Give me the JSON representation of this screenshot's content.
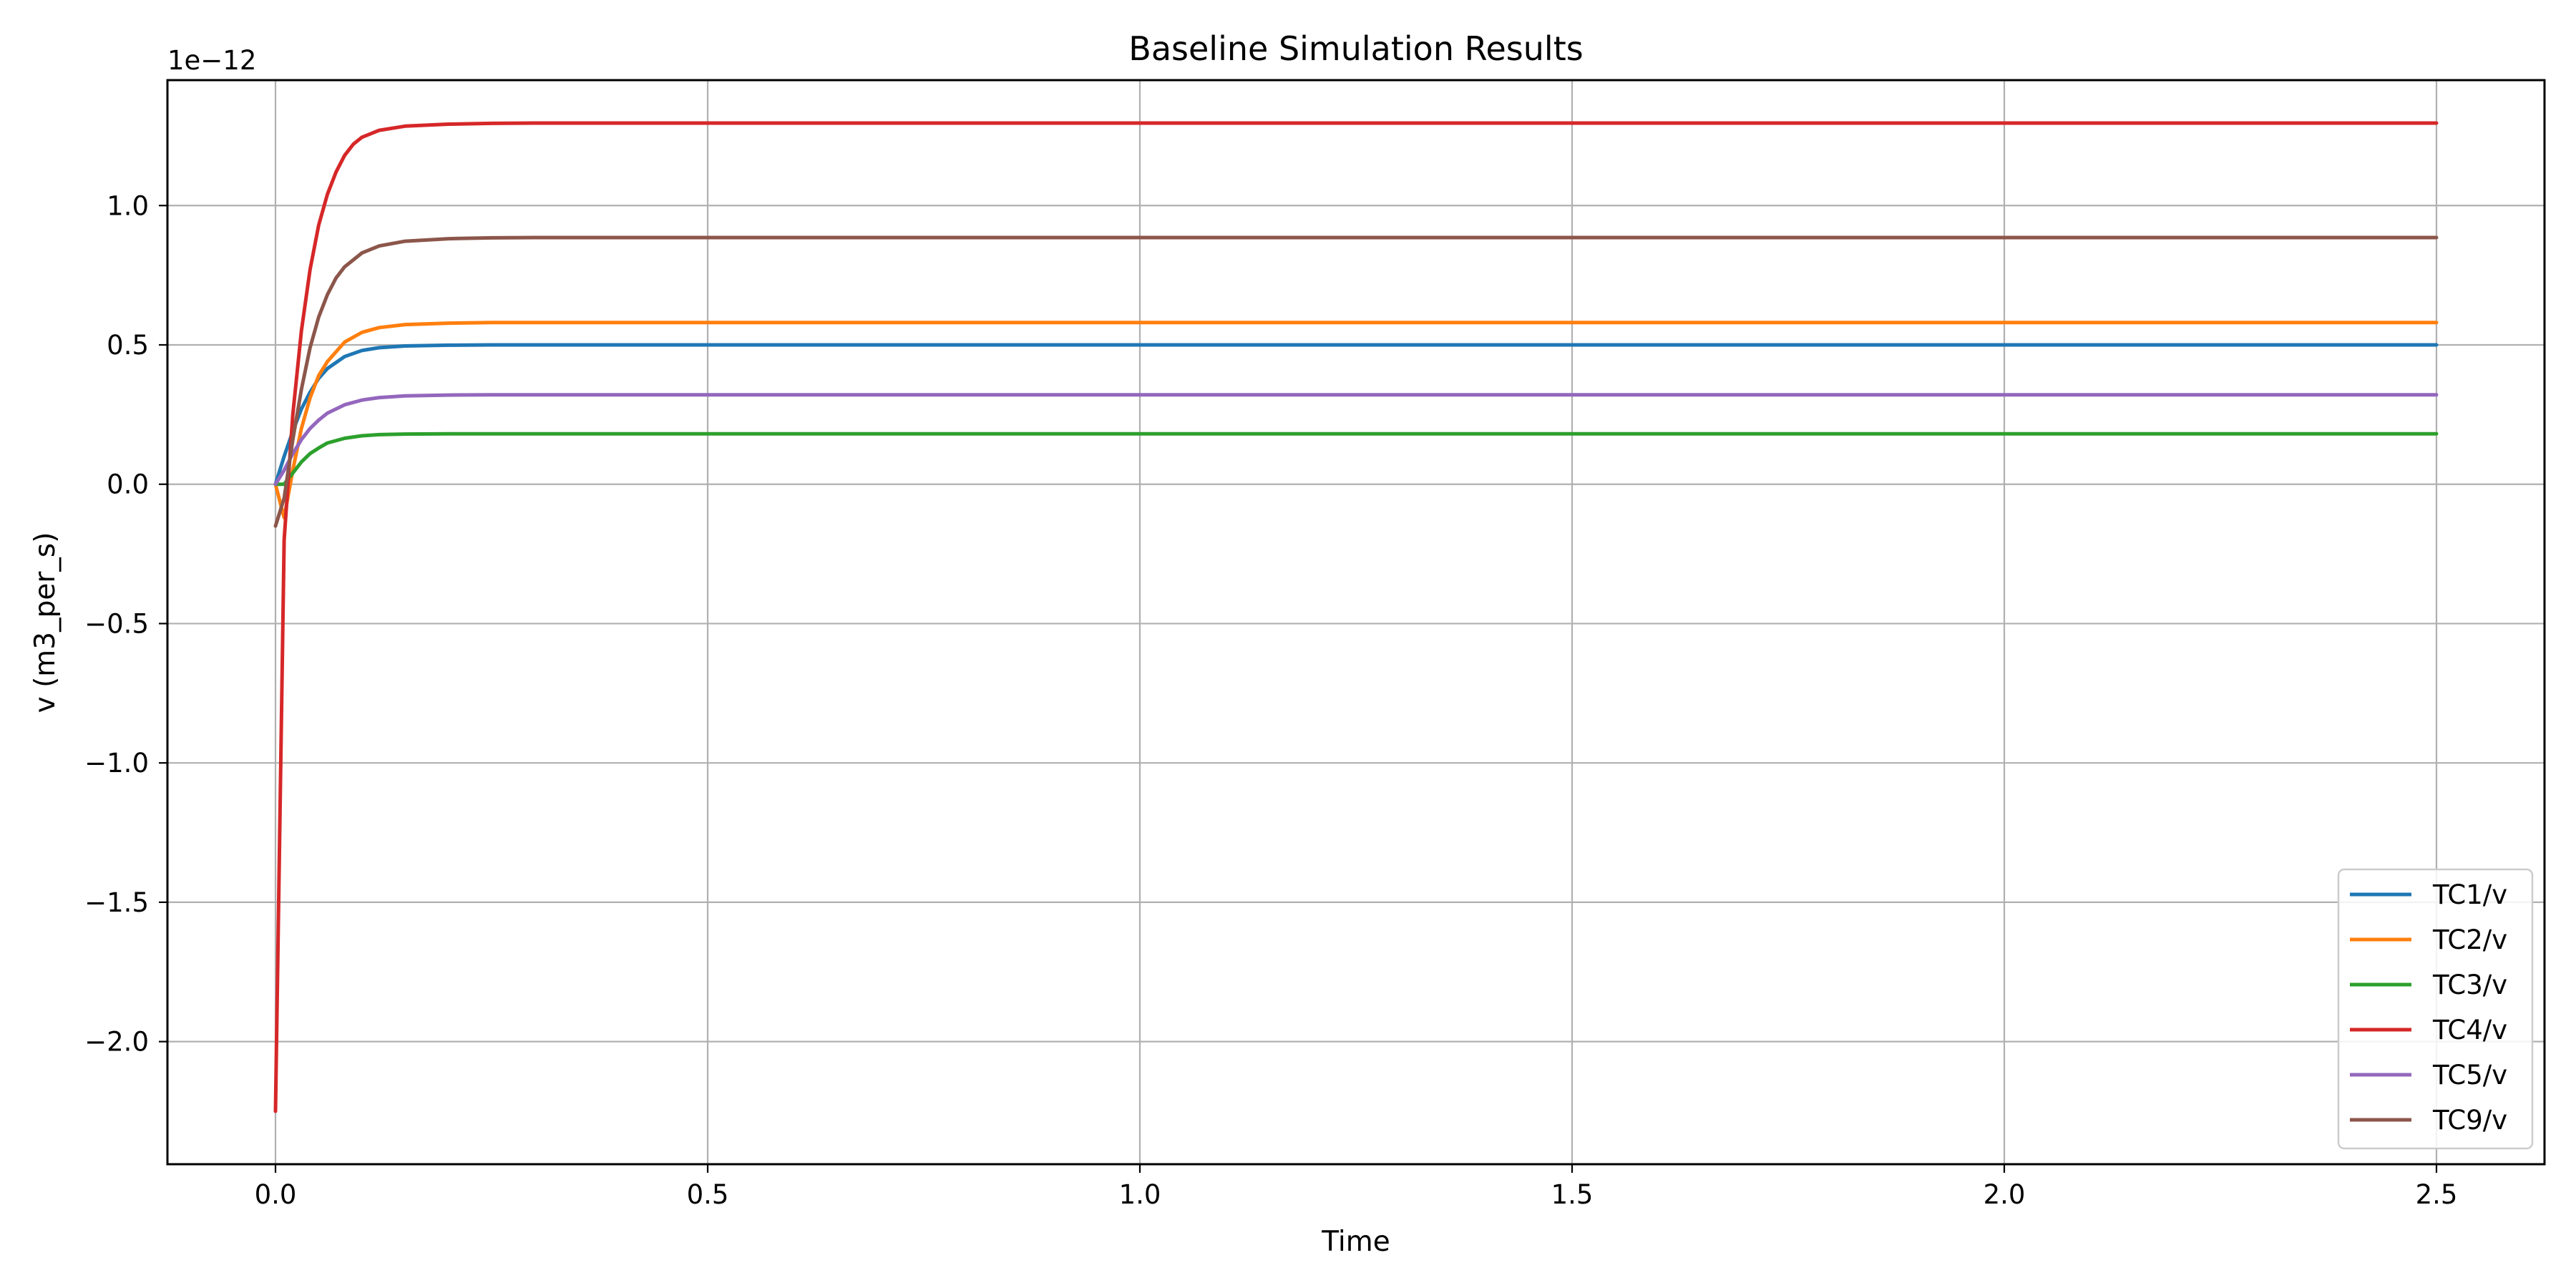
{
  "chart_data": {
    "type": "line",
    "title": "Baseline Simulation Results",
    "xlabel": "Time",
    "ylabel": "v (m3_per_s)",
    "y_offset_label": "1e−12",
    "y_multiplier": 1e-12,
    "xlim": [
      -0.125,
      2.625
    ],
    "ylim": [
      -2.44,
      1.45
    ],
    "x_ticks": [
      0.0,
      0.5,
      1.0,
      1.5,
      2.0,
      2.5
    ],
    "x_tick_labels": [
      "0.0",
      "0.5",
      "1.0",
      "1.5",
      "2.0",
      "2.5"
    ],
    "y_ticks": [
      -2.0,
      -1.5,
      -1.0,
      -0.5,
      0.0,
      0.5,
      1.0
    ],
    "y_tick_labels": [
      "−2.0",
      "−1.5",
      "−1.0",
      "−0.5",
      "0.0",
      "0.5",
      "1.0"
    ],
    "grid": true,
    "legend_position": "lower-right",
    "series": [
      {
        "name": "TC1/v",
        "color": "#1f77b4",
        "x": [
          0.0,
          0.01,
          0.02,
          0.03,
          0.04,
          0.05,
          0.06,
          0.08,
          0.1,
          0.12,
          0.15,
          0.2,
          0.25,
          0.3,
          0.4,
          0.6,
          1.0,
          1.5,
          2.0,
          2.5
        ],
        "y": [
          0.0,
          0.1,
          0.19,
          0.27,
          0.33,
          0.38,
          0.415,
          0.458,
          0.48,
          0.49,
          0.496,
          0.499,
          0.5,
          0.5,
          0.5,
          0.5,
          0.5,
          0.5,
          0.5,
          0.5
        ]
      },
      {
        "name": "TC2/v",
        "color": "#ff7f0e",
        "x": [
          0.0,
          0.01,
          0.02,
          0.03,
          0.04,
          0.05,
          0.06,
          0.08,
          0.1,
          0.12,
          0.15,
          0.2,
          0.25,
          0.3,
          0.4,
          0.6,
          1.0,
          1.5,
          2.0,
          2.5
        ],
        "y": [
          0.0,
          -0.12,
          0.05,
          0.2,
          0.31,
          0.39,
          0.44,
          0.51,
          0.545,
          0.562,
          0.573,
          0.578,
          0.58,
          0.58,
          0.58,
          0.58,
          0.58,
          0.58,
          0.58,
          0.58
        ]
      },
      {
        "name": "TC3/v",
        "color": "#2ca02c",
        "x": [
          0.0,
          0.01,
          0.02,
          0.03,
          0.04,
          0.05,
          0.06,
          0.08,
          0.1,
          0.12,
          0.15,
          0.2,
          0.25,
          0.3,
          0.4,
          0.6,
          1.0,
          1.5,
          2.0,
          2.5
        ],
        "y": [
          0.0,
          0.0,
          0.04,
          0.08,
          0.11,
          0.13,
          0.148,
          0.165,
          0.174,
          0.178,
          0.18,
          0.181,
          0.181,
          0.181,
          0.181,
          0.181,
          0.181,
          0.181,
          0.181,
          0.181
        ]
      },
      {
        "name": "TC4/v",
        "color": "#d62728",
        "x": [
          0.0,
          0.01,
          0.02,
          0.03,
          0.04,
          0.05,
          0.06,
          0.07,
          0.08,
          0.09,
          0.1,
          0.12,
          0.15,
          0.2,
          0.25,
          0.3,
          0.4,
          0.6,
          1.0,
          1.5,
          2.0,
          2.5
        ],
        "y": [
          -2.25,
          -0.2,
          0.25,
          0.55,
          0.77,
          0.93,
          1.04,
          1.12,
          1.18,
          1.22,
          1.245,
          1.27,
          1.285,
          1.292,
          1.295,
          1.296,
          1.296,
          1.296,
          1.296,
          1.296,
          1.296,
          1.296
        ]
      },
      {
        "name": "TC5/v",
        "color": "#9467bd",
        "x": [
          0.0,
          0.01,
          0.02,
          0.03,
          0.04,
          0.05,
          0.06,
          0.08,
          0.1,
          0.12,
          0.15,
          0.2,
          0.25,
          0.3,
          0.4,
          0.6,
          1.0,
          1.5,
          2.0,
          2.5
        ],
        "y": [
          0.0,
          0.05,
          0.11,
          0.16,
          0.2,
          0.23,
          0.255,
          0.285,
          0.302,
          0.311,
          0.317,
          0.32,
          0.321,
          0.321,
          0.321,
          0.321,
          0.321,
          0.321,
          0.321,
          0.321
        ]
      },
      {
        "name": "TC9/v",
        "color": "#8c564b",
        "x": [
          0.0,
          0.01,
          0.02,
          0.03,
          0.04,
          0.05,
          0.06,
          0.07,
          0.08,
          0.1,
          0.12,
          0.15,
          0.2,
          0.25,
          0.3,
          0.4,
          0.6,
          1.0,
          1.5,
          2.0,
          2.5
        ],
        "y": [
          -0.15,
          -0.05,
          0.16,
          0.34,
          0.49,
          0.6,
          0.68,
          0.74,
          0.78,
          0.83,
          0.855,
          0.872,
          0.881,
          0.884,
          0.885,
          0.885,
          0.885,
          0.885,
          0.885,
          0.885,
          0.885
        ]
      }
    ]
  }
}
